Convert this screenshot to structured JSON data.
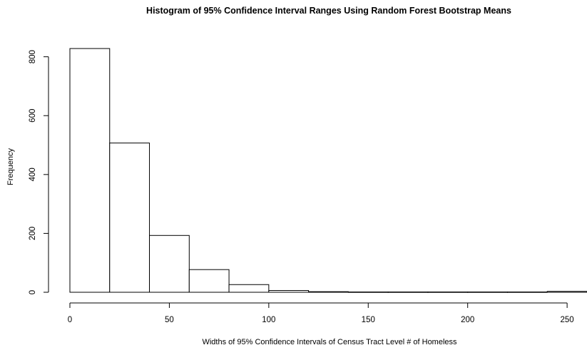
{
  "chart_data": {
    "type": "bar",
    "title": "Histogram of 95% Confidence Interval Ranges Using Random Forest Bootstrap Means",
    "xlabel": "Widths of 95% Confidence Intervals of Census Tract Level # of Homeless",
    "ylabel": "Frequency",
    "bin_edges": [
      0,
      20,
      40,
      60,
      80,
      100,
      120,
      140,
      160,
      180,
      200,
      220,
      240,
      260
    ],
    "values": [
      828,
      507,
      193,
      77,
      26,
      6,
      2,
      1,
      1,
      1,
      1,
      1,
      3
    ],
    "xlim": [
      0,
      260
    ],
    "ylim": [
      0,
      850
    ],
    "x_ticks": [
      0,
      50,
      100,
      150,
      200,
      250
    ],
    "y_ticks": [
      0,
      200,
      400,
      600,
      800
    ],
    "grid": false,
    "legend": "none",
    "bar_fill": "#ffffff",
    "bar_stroke": "#000000"
  }
}
